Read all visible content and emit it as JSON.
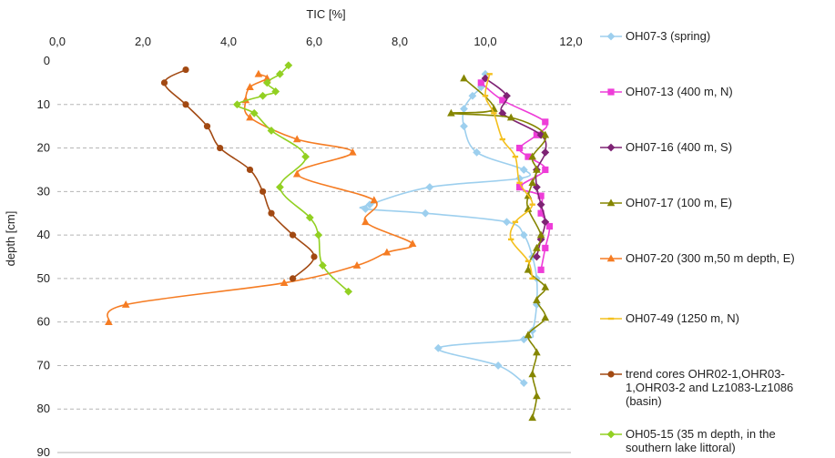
{
  "chart_data": {
    "type": "line",
    "title": "",
    "xlabel": "TIC [%]",
    "ylabel": "depth [cm]",
    "xlim": [
      0,
      12
    ],
    "ylim": [
      0,
      90
    ],
    "y_inverted": true,
    "x_axis_position": "top",
    "x_ticks": [
      "0,0",
      "2,0",
      "4,0",
      "6,0",
      "8,0",
      "10,0",
      "12,0"
    ],
    "y_ticks": [
      "0",
      "10",
      "20",
      "30",
      "40",
      "50",
      "60",
      "70",
      "80",
      "90"
    ],
    "grid": "horizontal dashed",
    "legend_position": "right",
    "series": [
      {
        "name": "OH07-3 (spring)",
        "color": "#9dcfee",
        "marker": "diamond",
        "points": [
          [
            10.0,
            3
          ],
          [
            9.9,
            6
          ],
          [
            9.7,
            8
          ],
          [
            9.5,
            11
          ],
          [
            9.5,
            15
          ],
          [
            9.8,
            21
          ],
          [
            10.9,
            25
          ],
          [
            10.8,
            27
          ],
          [
            8.7,
            29
          ],
          [
            7.3,
            33
          ],
          [
            7.2,
            34
          ],
          [
            8.6,
            35
          ],
          [
            10.5,
            37
          ],
          [
            10.9,
            40
          ],
          [
            11.1,
            45
          ],
          [
            11.2,
            50
          ],
          [
            11.2,
            56
          ],
          [
            11.1,
            62
          ],
          [
            10.9,
            64
          ],
          [
            8.9,
            66
          ],
          [
            10.3,
            70
          ],
          [
            10.9,
            74
          ]
        ]
      },
      {
        "name": "OH07-13 (400 m, N)",
        "color": "#ee3dd8",
        "marker": "square",
        "points": [
          [
            9.9,
            5
          ],
          [
            10.4,
            9
          ],
          [
            11.4,
            14
          ],
          [
            11.2,
            17
          ],
          [
            10.8,
            20
          ],
          [
            11.0,
            22
          ],
          [
            11.4,
            25
          ],
          [
            10.8,
            29
          ],
          [
            11.3,
            31
          ],
          [
            11.3,
            35
          ],
          [
            11.5,
            38
          ],
          [
            11.4,
            43
          ],
          [
            11.3,
            48
          ]
        ]
      },
      {
        "name": "OH07-16 (400 m, S)",
        "color": "#7e2374",
        "marker": "diamond",
        "points": [
          [
            10.0,
            4
          ],
          [
            10.5,
            8
          ],
          [
            10.4,
            12
          ],
          [
            11.3,
            17
          ],
          [
            11.4,
            21
          ],
          [
            11.2,
            25
          ],
          [
            11.2,
            29
          ],
          [
            11.3,
            33
          ],
          [
            11.4,
            37
          ],
          [
            11.3,
            41
          ],
          [
            11.2,
            45
          ]
        ]
      },
      {
        "name": "OH07-17 (100 m, E)",
        "color": "#858600",
        "marker": "triangle",
        "points": [
          [
            9.5,
            4
          ],
          [
            10.2,
            11
          ],
          [
            9.2,
            12
          ],
          [
            10.6,
            13
          ],
          [
            11.4,
            17
          ],
          [
            11.1,
            22
          ],
          [
            11.2,
            25
          ],
          [
            11.1,
            28
          ],
          [
            11.0,
            31
          ],
          [
            11.0,
            34
          ],
          [
            11.3,
            40
          ],
          [
            11.2,
            43
          ],
          [
            11.0,
            48
          ],
          [
            11.4,
            52
          ],
          [
            11.2,
            55
          ],
          [
            11.4,
            59
          ],
          [
            11.0,
            63
          ],
          [
            11.2,
            67
          ],
          [
            11.1,
            72
          ],
          [
            11.2,
            77
          ],
          [
            11.1,
            82
          ]
        ]
      },
      {
        "name": "OH07-20 (300 m,50 m depth, E)",
        "color": "#f57c23",
        "marker": "triangle",
        "points": [
          [
            4.7,
            3
          ],
          [
            4.9,
            4
          ],
          [
            4.5,
            6
          ],
          [
            4.4,
            9
          ],
          [
            4.5,
            13
          ],
          [
            5.6,
            18
          ],
          [
            6.9,
            21
          ],
          [
            5.6,
            26
          ],
          [
            7.4,
            32
          ],
          [
            7.2,
            37
          ],
          [
            8.3,
            42
          ],
          [
            7.7,
            44
          ],
          [
            7.0,
            47
          ],
          [
            5.3,
            51
          ],
          [
            1.6,
            56
          ],
          [
            1.2,
            60
          ]
        ]
      },
      {
        "name": "OH07-49 (1250 m, N)",
        "color": "#f4c01e",
        "marker": "dash",
        "points": [
          [
            10.1,
            3
          ],
          [
            10.0,
            8
          ],
          [
            10.2,
            12
          ],
          [
            10.4,
            18
          ],
          [
            10.7,
            22
          ],
          [
            10.8,
            28
          ],
          [
            11.1,
            33
          ],
          [
            10.7,
            37
          ],
          [
            10.6,
            41
          ],
          [
            11.0,
            46
          ],
          [
            11.1,
            50
          ]
        ]
      },
      {
        "name": "trend cores  OHR02-1,OHR03-1,OHR03-2 and Lz1083-Lz1086 (basin)",
        "color": "#a24912",
        "marker": "circle",
        "legend_lines": [
          "trend cores  OHR02-1,OHR03-",
          "1,OHR03-2 and Lz1083-Lz1086",
          "(basin)"
        ],
        "points": [
          [
            3.0,
            2
          ],
          [
            2.5,
            5
          ],
          [
            3.0,
            10
          ],
          [
            3.5,
            15
          ],
          [
            3.8,
            20
          ],
          [
            4.5,
            25
          ],
          [
            4.8,
            30
          ],
          [
            5.0,
            35
          ],
          [
            5.5,
            40
          ],
          [
            6.0,
            45
          ],
          [
            5.5,
            50
          ]
        ]
      },
      {
        "name": "OH05-15 (35 m depth, in the southern lake littoral)",
        "color": "#92d022",
        "marker": "diamond",
        "legend_lines": [
          "OH05-15 (35 m depth, in the",
          "southern lake littoral)"
        ],
        "points": [
          [
            5.4,
            1
          ],
          [
            5.2,
            3
          ],
          [
            4.9,
            5
          ],
          [
            5.1,
            7
          ],
          [
            4.8,
            8
          ],
          [
            4.2,
            10
          ],
          [
            4.6,
            12
          ],
          [
            5.0,
            16
          ],
          [
            5.8,
            22
          ],
          [
            5.2,
            29
          ],
          [
            5.9,
            36
          ],
          [
            6.1,
            40
          ],
          [
            6.2,
            47
          ],
          [
            6.8,
            53
          ]
        ]
      }
    ]
  }
}
